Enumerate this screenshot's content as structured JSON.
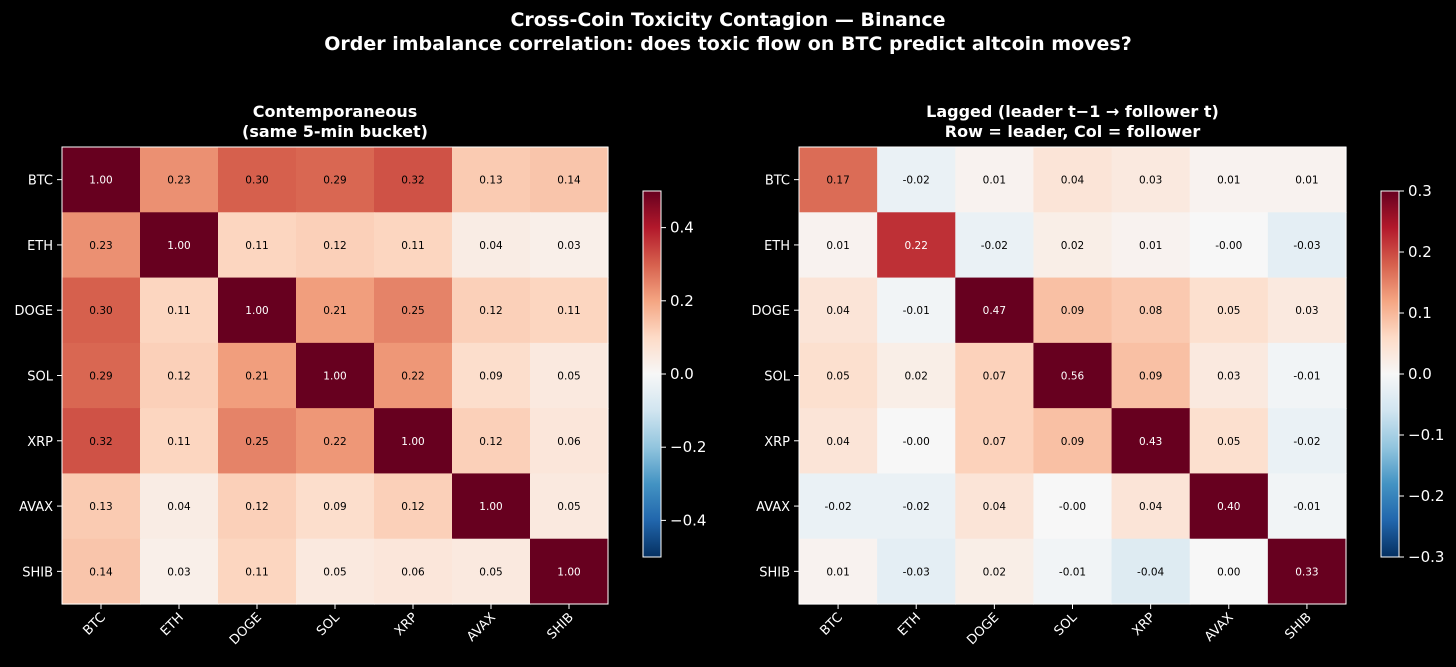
{
  "suptitle": {
    "line1": "Cross-Coin Toxicity Contagion — Binance",
    "line2": "Order imbalance correlation: does toxic flow on BTC predict altcoin moves?"
  },
  "chart_data": [
    {
      "type": "heatmap",
      "title_lines": [
        "Contemporaneous",
        "(same 5-min bucket)"
      ],
      "rows": [
        "BTC",
        "ETH",
        "DOGE",
        "SOL",
        "XRP",
        "AVAX",
        "SHIB"
      ],
      "cols": [
        "BTC",
        "ETH",
        "DOGE",
        "SOL",
        "XRP",
        "AVAX",
        "SHIB"
      ],
      "values": [
        [
          1.0,
          0.23,
          0.3,
          0.29,
          0.32,
          0.13,
          0.14
        ],
        [
          0.23,
          1.0,
          0.11,
          0.12,
          0.11,
          0.04,
          0.03
        ],
        [
          0.3,
          0.11,
          1.0,
          0.21,
          0.25,
          0.12,
          0.11
        ],
        [
          0.29,
          0.12,
          0.21,
          1.0,
          0.22,
          0.09,
          0.05
        ],
        [
          0.32,
          0.11,
          0.25,
          0.22,
          1.0,
          0.12,
          0.06
        ],
        [
          0.13,
          0.04,
          0.12,
          0.09,
          0.12,
          1.0,
          0.05
        ],
        [
          0.14,
          0.03,
          0.11,
          0.05,
          0.06,
          0.05,
          1.0
        ]
      ],
      "labels": [
        [
          "1.00",
          "0.23",
          "0.30",
          "0.29",
          "0.32",
          "0.13",
          "0.14"
        ],
        [
          "0.23",
          "1.00",
          "0.11",
          "0.12",
          "0.11",
          "0.04",
          "0.03"
        ],
        [
          "0.30",
          "0.11",
          "1.00",
          "0.21",
          "0.25",
          "0.12",
          "0.11"
        ],
        [
          "0.29",
          "0.12",
          "0.21",
          "1.00",
          "0.22",
          "0.09",
          "0.05"
        ],
        [
          "0.32",
          "0.11",
          "0.25",
          "0.22",
          "1.00",
          "0.12",
          "0.06"
        ],
        [
          "0.13",
          "0.04",
          "0.12",
          "0.09",
          "0.12",
          "1.00",
          "0.05"
        ],
        [
          "0.14",
          "0.03",
          "0.11",
          "0.05",
          "0.06",
          "0.05",
          "1.00"
        ]
      ],
      "vmin": -0.5,
      "vmax": 0.5,
      "colormap": "RdBu_r",
      "colorbar_ticks": [
        0.4,
        0.2,
        0.0,
        -0.2,
        -0.4
      ],
      "colorbar_tick_labels": [
        "0.4",
        "0.2",
        "0.0",
        "−0.2",
        "−0.4"
      ]
    },
    {
      "type": "heatmap",
      "title_lines": [
        "Lagged (leader t−1 → follower t)",
        "Row = leader, Col = follower"
      ],
      "rows": [
        "BTC",
        "ETH",
        "DOGE",
        "SOL",
        "XRP",
        "AVAX",
        "SHIB"
      ],
      "cols": [
        "BTC",
        "ETH",
        "DOGE",
        "SOL",
        "XRP",
        "AVAX",
        "SHIB"
      ],
      "values": [
        [
          0.17,
          -0.02,
          0.01,
          0.04,
          0.03,
          0.01,
          0.01
        ],
        [
          0.01,
          0.22,
          -0.02,
          0.02,
          0.01,
          -0.0,
          -0.03
        ],
        [
          0.04,
          -0.01,
          0.47,
          0.09,
          0.08,
          0.05,
          0.03
        ],
        [
          0.05,
          0.02,
          0.07,
          0.56,
          0.09,
          0.03,
          -0.01
        ],
        [
          0.04,
          -0.0,
          0.07,
          0.09,
          0.43,
          0.05,
          -0.02
        ],
        [
          -0.02,
          -0.02,
          0.04,
          -0.0,
          0.04,
          0.4,
          -0.01
        ],
        [
          0.01,
          -0.03,
          0.02,
          -0.01,
          -0.04,
          0.0,
          0.33
        ]
      ],
      "labels": [
        [
          "0.17",
          "-0.02",
          "0.01",
          "0.04",
          "0.03",
          "0.01",
          "0.01"
        ],
        [
          "0.01",
          "0.22",
          "-0.02",
          "0.02",
          "0.01",
          "-0.00",
          "-0.03"
        ],
        [
          "0.04",
          "-0.01",
          "0.47",
          "0.09",
          "0.08",
          "0.05",
          "0.03"
        ],
        [
          "0.05",
          "0.02",
          "0.07",
          "0.56",
          "0.09",
          "0.03",
          "-0.01"
        ],
        [
          "0.04",
          "-0.00",
          "0.07",
          "0.09",
          "0.43",
          "0.05",
          "-0.02"
        ],
        [
          "-0.02",
          "-0.02",
          "0.04",
          "-0.00",
          "0.04",
          "0.40",
          "-0.01"
        ],
        [
          "0.01",
          "-0.03",
          "0.02",
          "-0.01",
          "-0.04",
          "0.00",
          "0.33"
        ]
      ],
      "vmin": -0.3,
      "vmax": 0.3,
      "colormap": "RdBu_r",
      "colorbar_ticks": [
        0.3,
        0.2,
        0.1,
        0.0,
        -0.1,
        -0.2,
        -0.3
      ],
      "colorbar_tick_labels": [
        "0.3",
        "0.2",
        "0.1",
        "0.0",
        "−0.1",
        "−0.2",
        "−0.3"
      ]
    }
  ]
}
